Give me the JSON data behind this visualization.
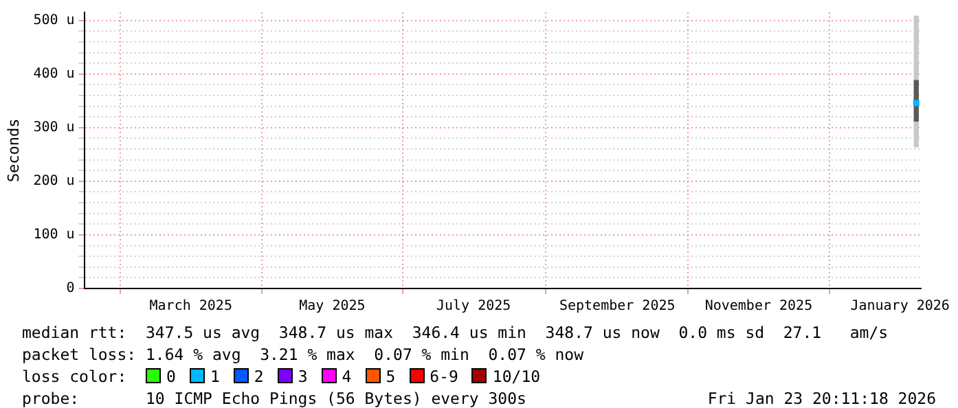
{
  "chart_data": {
    "type": "bar",
    "ylabel": "Seconds",
    "x": [
      "2026-01-08"
    ],
    "xlim": [
      "2025-01-14",
      "2026-01-10"
    ],
    "xticks": [
      {
        "value": "2025-03-01",
        "label": "March 2025"
      },
      {
        "value": "2025-05-01",
        "label": "May 2025"
      },
      {
        "value": "2025-07-01",
        "label": "July 2025"
      },
      {
        "value": "2025-09-01",
        "label": "September 2025"
      },
      {
        "value": "2025-11-01",
        "label": "November 2025"
      },
      {
        "value": "2026-01-01",
        "label": "January 2026"
      }
    ],
    "ylim": [
      0,
      515
    ],
    "yticks": [
      0,
      {
        "value": 20,
        "label": null
      },
      {
        "value": 40,
        "label": null
      },
      {
        "value": 60,
        "label": null
      },
      {
        "value": 80,
        "label": null
      },
      {
        "value": 100,
        "label": "100 u"
      },
      {
        "value": 120,
        "label": null
      },
      {
        "value": 140,
        "label": null
      },
      {
        "value": 160,
        "label": null
      },
      {
        "value": 180,
        "label": null
      },
      {
        "value": 200,
        "label": "200 u"
      },
      {
        "value": 220,
        "label": null
      },
      {
        "value": 240,
        "label": null
      },
      {
        "value": 260,
        "label": null
      },
      {
        "value": 280,
        "label": null
      },
      {
        "value": 300,
        "label": "300 u"
      },
      {
        "value": 320,
        "label": null
      },
      {
        "value": 340,
        "label": null
      },
      {
        "value": 360,
        "label": null
      },
      {
        "value": 380,
        "label": null
      },
      {
        "value": 400,
        "label": "400 u"
      },
      {
        "value": 420,
        "label": null
      },
      {
        "value": 440,
        "label": null
      },
      {
        "value": 460,
        "label": null
      },
      {
        "value": 480,
        "label": null
      },
      {
        "value": 500,
        "label": "500 u"
      }
    ],
    "grid": true,
    "legend": "bottom",
    "legend_title": "loss color:",
    "series": [
      {
        "color": "#c8c8c8",
        "base": [
          264
        ],
        "values": [
          244
        ]
      },
      {
        "color": "#5a5a5a",
        "base": [
          312
        ],
        "values": [
          76
        ]
      },
      {
        "type": "scatter",
        "marker": "square",
        "color": "#00b8ff",
        "values": [
          346
        ]
      },
      {
        "type": "scatter",
        "name": "0",
        "color": "#26ff00",
        "values": [
          null
        ]
      },
      {
        "type": "scatter",
        "name": "1",
        "color": "#00b8ff",
        "values": [
          null
        ]
      },
      {
        "type": "scatter",
        "name": "2",
        "color": "#0059ff",
        "values": [
          null
        ]
      },
      {
        "type": "scatter",
        "name": "3",
        "color": "#7e00ff",
        "values": [
          null
        ]
      },
      {
        "type": "scatter",
        "name": "4",
        "color": "#ff00ff",
        "values": [
          null
        ]
      },
      {
        "type": "scatter",
        "name": "5",
        "color": "#ff5500",
        "values": [
          null
        ]
      },
      {
        "type": "scatter",
        "name": "6-9",
        "color": "#ff0000",
        "values": [
          null
        ]
      },
      {
        "type": "scatter",
        "name": "10/10",
        "color": "#a10000",
        "values": [
          null
        ]
      }
    ],
    "annotations": [
      "median rtt:  347.5 us avg  348.7 us max  346.4 us min  348.7 us now  0.0 ms sd  27.1   am/s",
      "packet loss: 1.64 % avg  3.21 % max  0.07 % min  0.07 % now",
      "probe:       10 ICMP Echo Pings (56 Bytes) every 300s",
      "Fri Jan 23 20:11:18 2026"
    ]
  }
}
